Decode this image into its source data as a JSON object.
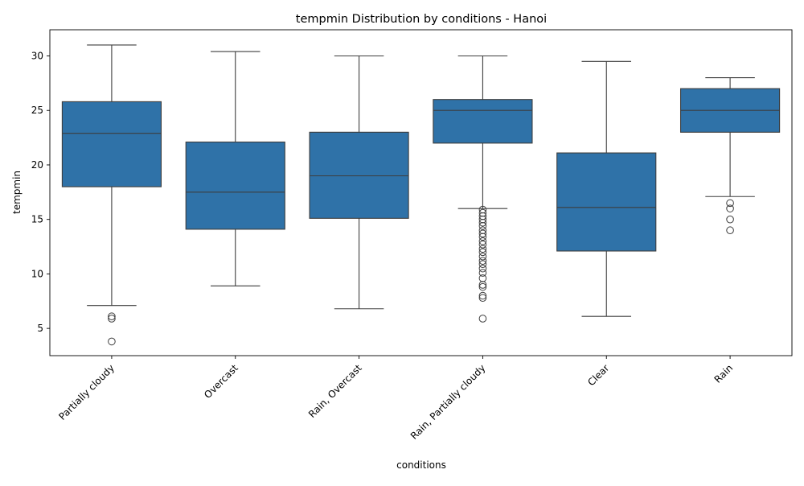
{
  "chart_data": {
    "type": "box",
    "title": "tempmin Distribution by conditions - Hanoi",
    "xlabel": "conditions",
    "ylabel": "tempmin",
    "ylim": [
      2.5,
      32.4
    ],
    "yticks": [
      5,
      10,
      15,
      20,
      25,
      30
    ],
    "grid": false,
    "box_color": "#2f72a8",
    "line_color": "#3d3d3d",
    "categories": [
      "Partially cloudy",
      "Overcast",
      "Rain, Overcast",
      "Rain, Partially cloudy",
      "Clear",
      "Rain"
    ],
    "boxes": [
      {
        "category": "Partially cloudy",
        "whisker_low": 7.1,
        "q1": 18.0,
        "median": 22.9,
        "q3": 25.8,
        "whisker_high": 31.0,
        "outliers": [
          6.1,
          5.9,
          3.8
        ]
      },
      {
        "category": "Overcast",
        "whisker_low": 8.9,
        "q1": 14.1,
        "median": 17.5,
        "q3": 22.1,
        "whisker_high": 30.4,
        "outliers": []
      },
      {
        "category": "Rain, Overcast",
        "whisker_low": 6.8,
        "q1": 15.1,
        "median": 19.0,
        "q3": 23.0,
        "whisker_high": 30.0,
        "outliers": []
      },
      {
        "category": "Rain, Partially cloudy",
        "whisker_low": 16.0,
        "q1": 22.0,
        "median": 25.0,
        "q3": 26.0,
        "whisker_high": 30.0,
        "outliers": [
          15.9,
          15.6,
          15.3,
          15.0,
          14.7,
          14.4,
          14.0,
          13.7,
          13.4,
          13.0,
          12.7,
          12.3,
          12.0,
          11.6,
          11.2,
          10.9,
          10.5,
          10.1,
          9.6,
          9.0,
          8.8,
          8.0,
          7.8,
          5.9
        ]
      },
      {
        "category": "Clear",
        "whisker_low": 6.1,
        "q1": 12.1,
        "median": 16.1,
        "q3": 21.1,
        "whisker_high": 29.5,
        "outliers": []
      },
      {
        "category": "Rain",
        "whisker_low": 17.1,
        "q1": 23.0,
        "median": 25.0,
        "q3": 27.0,
        "whisker_high": 28.0,
        "outliers": [
          16.5,
          16.0,
          15.0,
          14.0
        ]
      }
    ]
  }
}
